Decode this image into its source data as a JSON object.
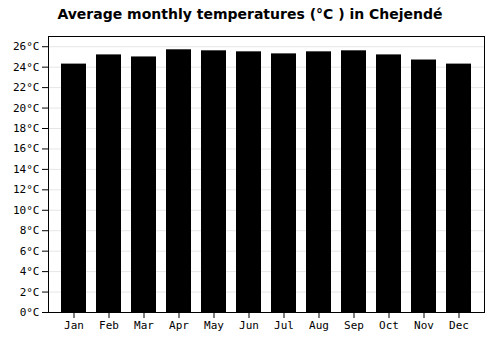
{
  "chart_data": {
    "type": "bar",
    "title": "Average monthly temperatures (°C ) in Chejendé",
    "categories": [
      "Jan",
      "Feb",
      "Mar",
      "Apr",
      "May",
      "Jun",
      "Jul",
      "Aug",
      "Sep",
      "Oct",
      "Nov",
      "Dec"
    ],
    "values": [
      24.3,
      25.2,
      25.0,
      25.7,
      25.6,
      25.5,
      25.3,
      25.5,
      25.6,
      25.2,
      24.7,
      24.3
    ],
    "ylim": [
      0,
      27
    ],
    "yticks": [
      {
        "value": 0,
        "label": "0°C"
      },
      {
        "value": 2,
        "label": "2°C"
      },
      {
        "value": 4,
        "label": "4°C"
      },
      {
        "value": 6,
        "label": "6°C"
      },
      {
        "value": 8,
        "label": "8°C"
      },
      {
        "value": 10,
        "label": "10°C"
      },
      {
        "value": 12,
        "label": "12°C"
      },
      {
        "value": 14,
        "label": "14°C"
      },
      {
        "value": 16,
        "label": "16°C"
      },
      {
        "value": 18,
        "label": "18°C"
      },
      {
        "value": 20,
        "label": "20°C"
      },
      {
        "value": 22,
        "label": "22°C"
      },
      {
        "value": 24,
        "label": "24°C"
      },
      {
        "value": 26,
        "label": "26°C"
      }
    ],
    "grid": true
  }
}
